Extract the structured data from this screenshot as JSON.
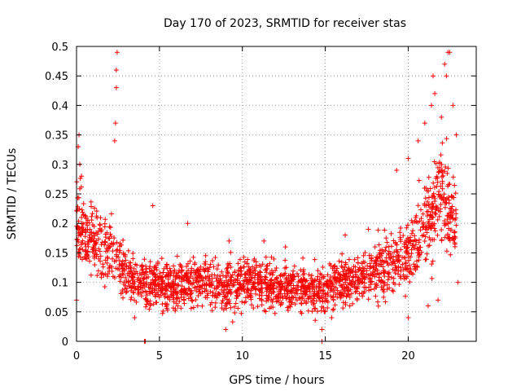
{
  "chart_data": {
    "type": "scatter",
    "title": "Day 170 of 2023, SRMTID for receiver stas",
    "xlabel": "GPS time / hours",
    "ylabel": "SRMTID / TECUs",
    "xlim": [
      0,
      24.1
    ],
    "ylim": [
      0,
      0.5
    ],
    "xticks": [
      0,
      5,
      10,
      15,
      20
    ],
    "yticks": [
      0,
      0.05,
      0.1,
      0.15,
      0.2,
      0.25,
      0.3,
      0.35,
      0.4,
      0.45,
      0.5
    ],
    "grid": true,
    "marker": "+",
    "color": "#ff0000",
    "series": [
      {
        "name": "stas",
        "trend": {
          "x": [
            0,
            0.2,
            0.5,
            1,
            1.5,
            2,
            2.4,
            2.6,
            3,
            3.5,
            4,
            4.5,
            5,
            6,
            7,
            8,
            9,
            10,
            11,
            12,
            13,
            14,
            15,
            16,
            17,
            18,
            19,
            20,
            20.5,
            21,
            21.5,
            22,
            22.5,
            22.9
          ],
          "y": [
            0.2,
            0.2,
            0.17,
            0.17,
            0.16,
            0.15,
            0.14,
            0.13,
            0.12,
            0.1,
            0.1,
            0.1,
            0.1,
            0.09,
            0.1,
            0.1,
            0.09,
            0.1,
            0.1,
            0.09,
            0.09,
            0.09,
            0.09,
            0.1,
            0.11,
            0.12,
            0.13,
            0.15,
            0.17,
            0.2,
            0.22,
            0.25,
            0.22,
            0.2
          ]
        },
        "highlights": [
          {
            "x": 0.0,
            "y": 0.07
          },
          {
            "x": 0.1,
            "y": 0.33
          },
          {
            "x": 0.15,
            "y": 0.35
          },
          {
            "x": 0.2,
            "y": 0.3
          },
          {
            "x": 0.3,
            "y": 0.28
          },
          {
            "x": 2.3,
            "y": 0.34
          },
          {
            "x": 2.35,
            "y": 0.37
          },
          {
            "x": 2.4,
            "y": 0.43
          },
          {
            "x": 2.4,
            "y": 0.46
          },
          {
            "x": 2.45,
            "y": 0.49
          },
          {
            "x": 3.5,
            "y": 0.04
          },
          {
            "x": 4.1,
            "y": 0.0
          },
          {
            "x": 4.15,
            "y": 0.0
          },
          {
            "x": 4.6,
            "y": 0.23
          },
          {
            "x": 6.7,
            "y": 0.2
          },
          {
            "x": 9.0,
            "y": 0.02
          },
          {
            "x": 9.2,
            "y": 0.17
          },
          {
            "x": 11.3,
            "y": 0.17
          },
          {
            "x": 12.6,
            "y": 0.16
          },
          {
            "x": 14.8,
            "y": 0.0
          },
          {
            "x": 14.8,
            "y": 0.02
          },
          {
            "x": 16.2,
            "y": 0.18
          },
          {
            "x": 17.6,
            "y": 0.19
          },
          {
            "x": 19.3,
            "y": 0.29
          },
          {
            "x": 20.0,
            "y": 0.31
          },
          {
            "x": 20.0,
            "y": 0.04
          },
          {
            "x": 20.6,
            "y": 0.34
          },
          {
            "x": 21.0,
            "y": 0.37
          },
          {
            "x": 21.4,
            "y": 0.4
          },
          {
            "x": 21.5,
            "y": 0.45
          },
          {
            "x": 21.6,
            "y": 0.42
          },
          {
            "x": 22.0,
            "y": 0.38
          },
          {
            "x": 22.2,
            "y": 0.47
          },
          {
            "x": 22.3,
            "y": 0.45
          },
          {
            "x": 22.4,
            "y": 0.49
          },
          {
            "x": 22.5,
            "y": 0.49
          },
          {
            "x": 22.7,
            "y": 0.4
          },
          {
            "x": 22.9,
            "y": 0.35
          },
          {
            "x": 23.0,
            "y": 0.1
          },
          {
            "x": 21.8,
            "y": 0.07
          },
          {
            "x": 21.2,
            "y": 0.06
          },
          {
            "x": 18.0,
            "y": 0.16
          }
        ]
      }
    ]
  }
}
